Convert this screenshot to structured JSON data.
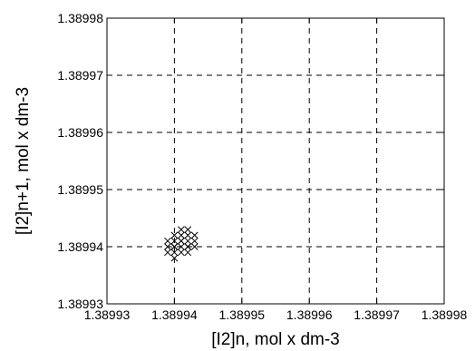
{
  "chart_data": {
    "type": "scatter",
    "title": "",
    "xlabel": "[I2]n, mol x dm-3",
    "ylabel": "[I2]n+1, mol x dm-3",
    "xlim": [
      1.38993,
      1.38998
    ],
    "ylim": [
      1.38993,
      1.38998
    ],
    "xticks": [
      1.38993,
      1.38994,
      1.38995,
      1.38996,
      1.38997,
      1.38998
    ],
    "yticks": [
      1.38993,
      1.38994,
      1.38995,
      1.38996,
      1.38997,
      1.38998
    ],
    "xtick_labels": [
      "1.38993",
      "1.38994",
      "1.38995",
      "1.38996",
      "1.38997",
      "1.38998"
    ],
    "ytick_labels": [
      "1.38993",
      "1.38994",
      "1.38995",
      "1.38996",
      "1.38997",
      "1.38998"
    ],
    "grid": true,
    "marker": "x",
    "marker_color": "#000000",
    "points": [
      [
        1.38994,
        1.38994
      ],
      [
        1.389939,
        1.389939
      ],
      [
        1.38994,
        1.389941
      ],
      [
        1.389941,
        1.38994
      ],
      [
        1.389941,
        1.389941
      ],
      [
        1.389942,
        1.389941
      ],
      [
        1.389941,
        1.389942
      ],
      [
        1.38994,
        1.389942
      ],
      [
        1.389942,
        1.389942
      ],
      [
        1.389941,
        1.389939
      ],
      [
        1.389943,
        1.389941
      ],
      [
        1.389942,
        1.38994
      ],
      [
        1.38994,
        1.389939
      ],
      [
        1.389939,
        1.389941
      ],
      [
        1.389941,
        1.389943
      ],
      [
        1.389942,
        1.389943
      ],
      [
        1.389943,
        1.389942
      ],
      [
        1.38994,
        1.38994
      ],
      [
        1.389941,
        1.389941
      ],
      [
        1.389942,
        1.38994
      ],
      [
        1.38994,
        1.389938
      ],
      [
        1.389939,
        1.38994
      ],
      [
        1.389943,
        1.38994
      ],
      [
        1.389942,
        1.389939
      ]
    ]
  }
}
